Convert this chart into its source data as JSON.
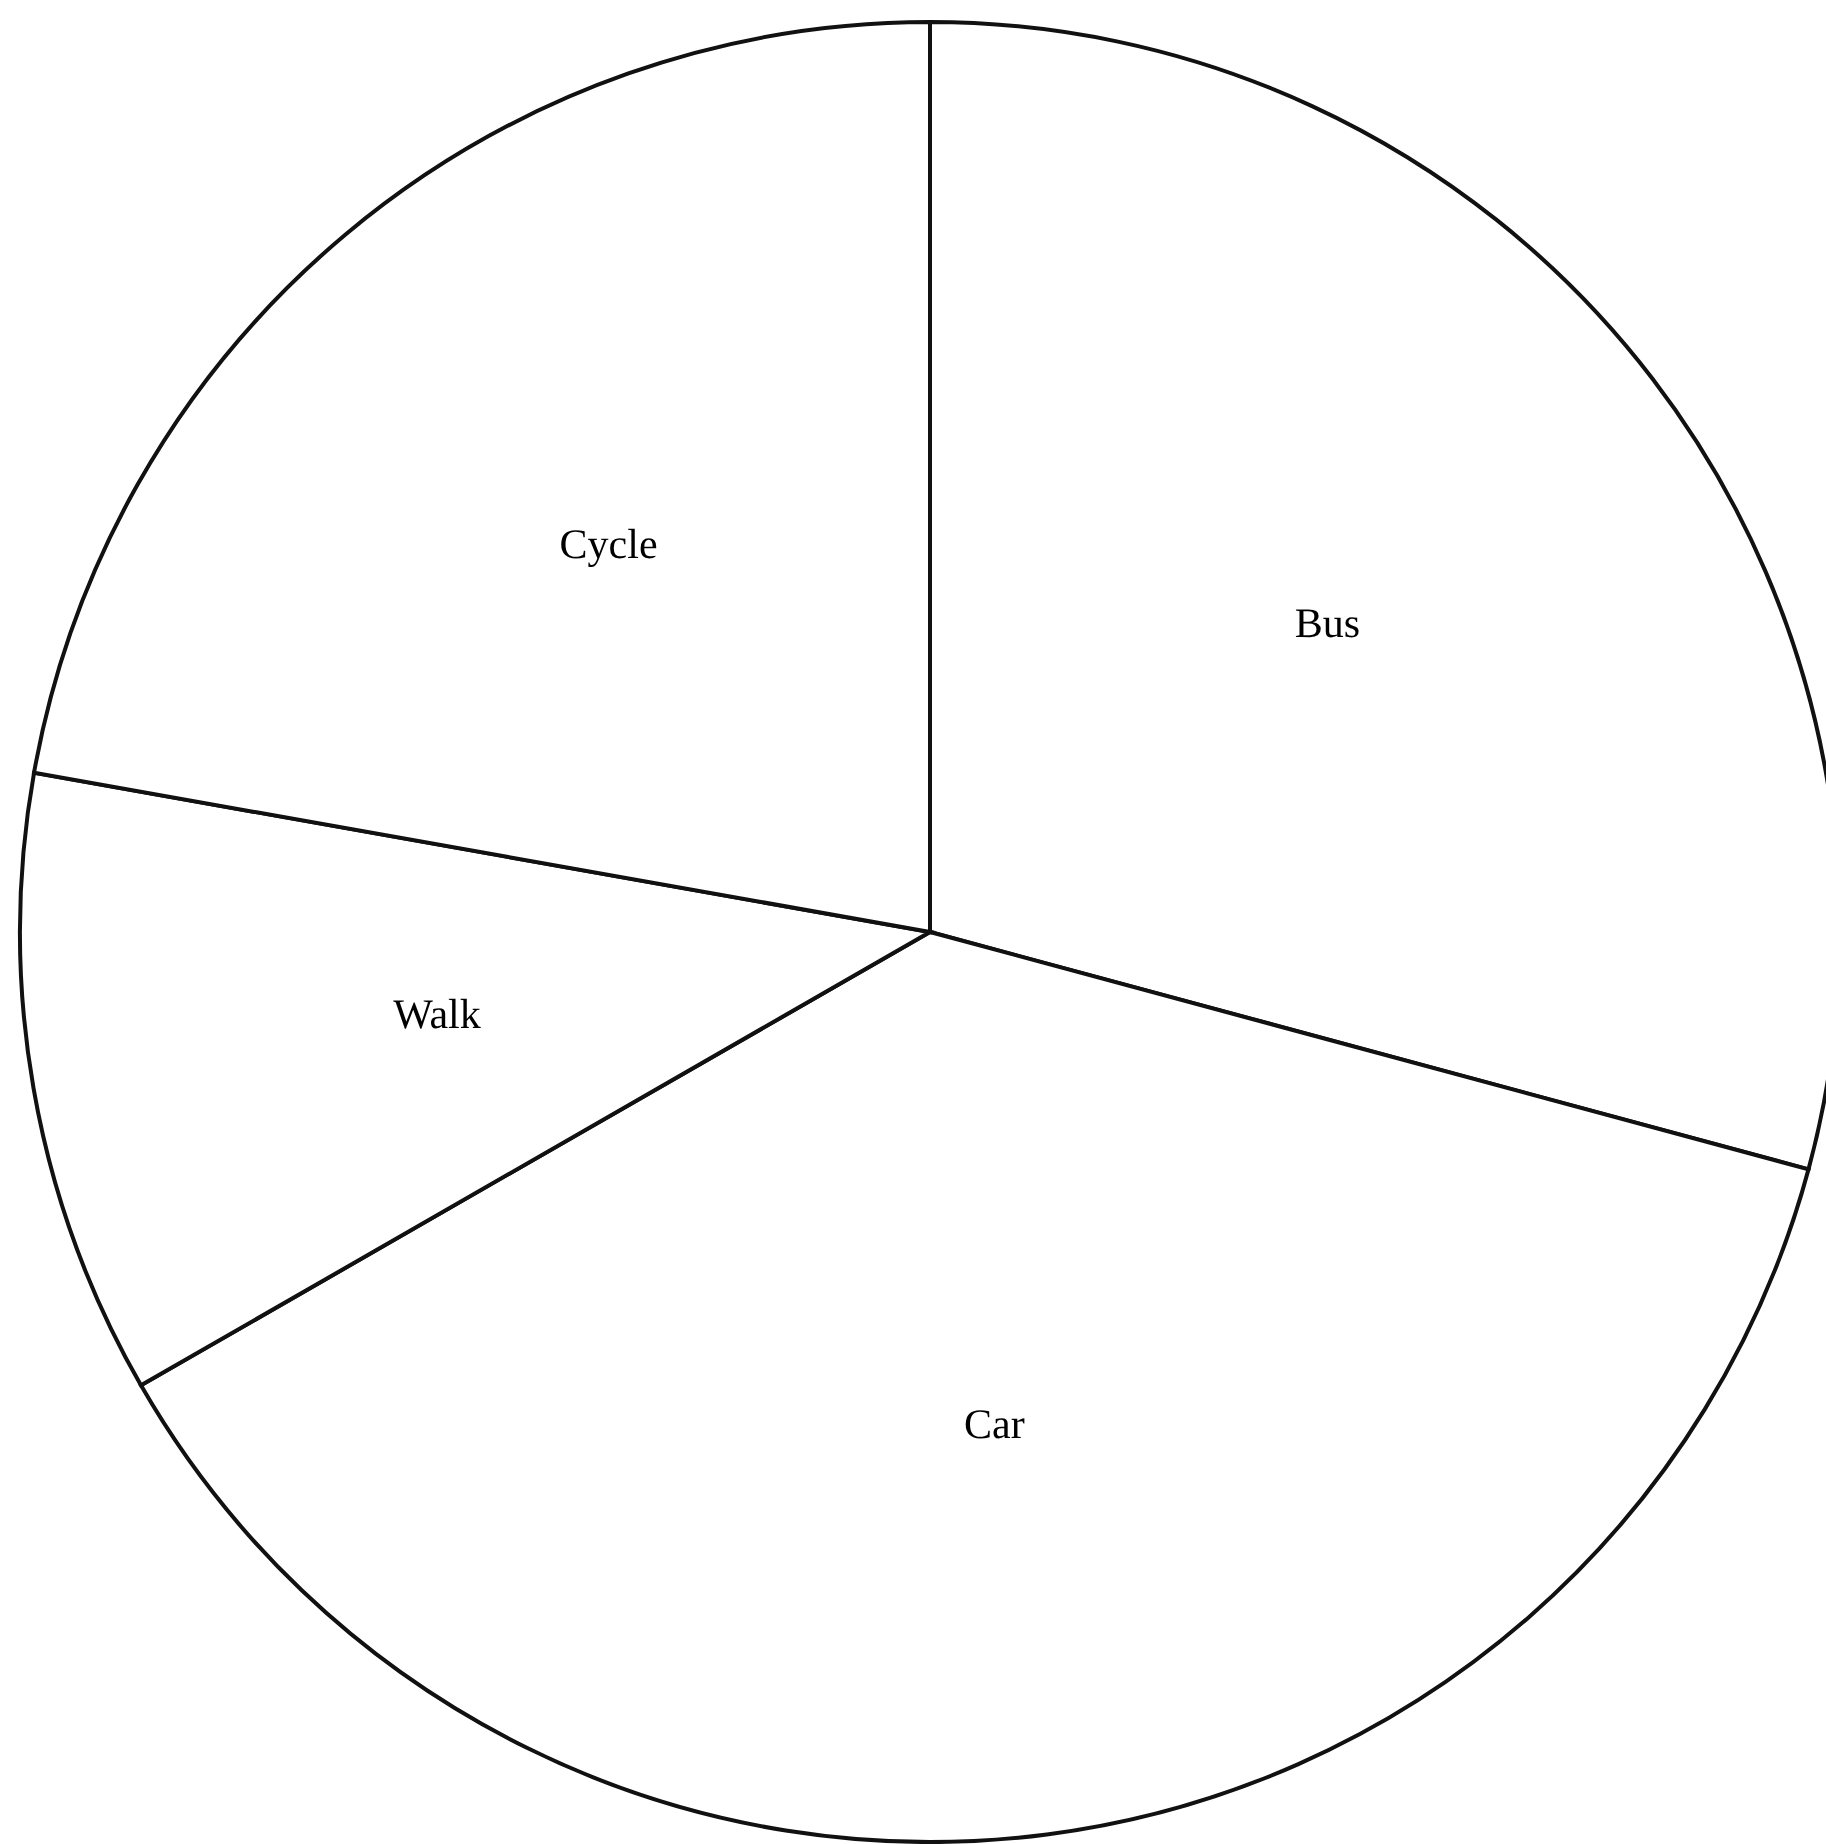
{
  "chart_data": {
    "type": "pie",
    "categories": [
      "Bus",
      "Car",
      "Walk",
      "Cycle"
    ],
    "values": [
      29.2,
      37.5,
      11.1,
      22.2
    ],
    "colors": [
      "#ffffff",
      "#ffffff",
      "#ffffff",
      "#ffffff"
    ],
    "legend": false
  }
}
